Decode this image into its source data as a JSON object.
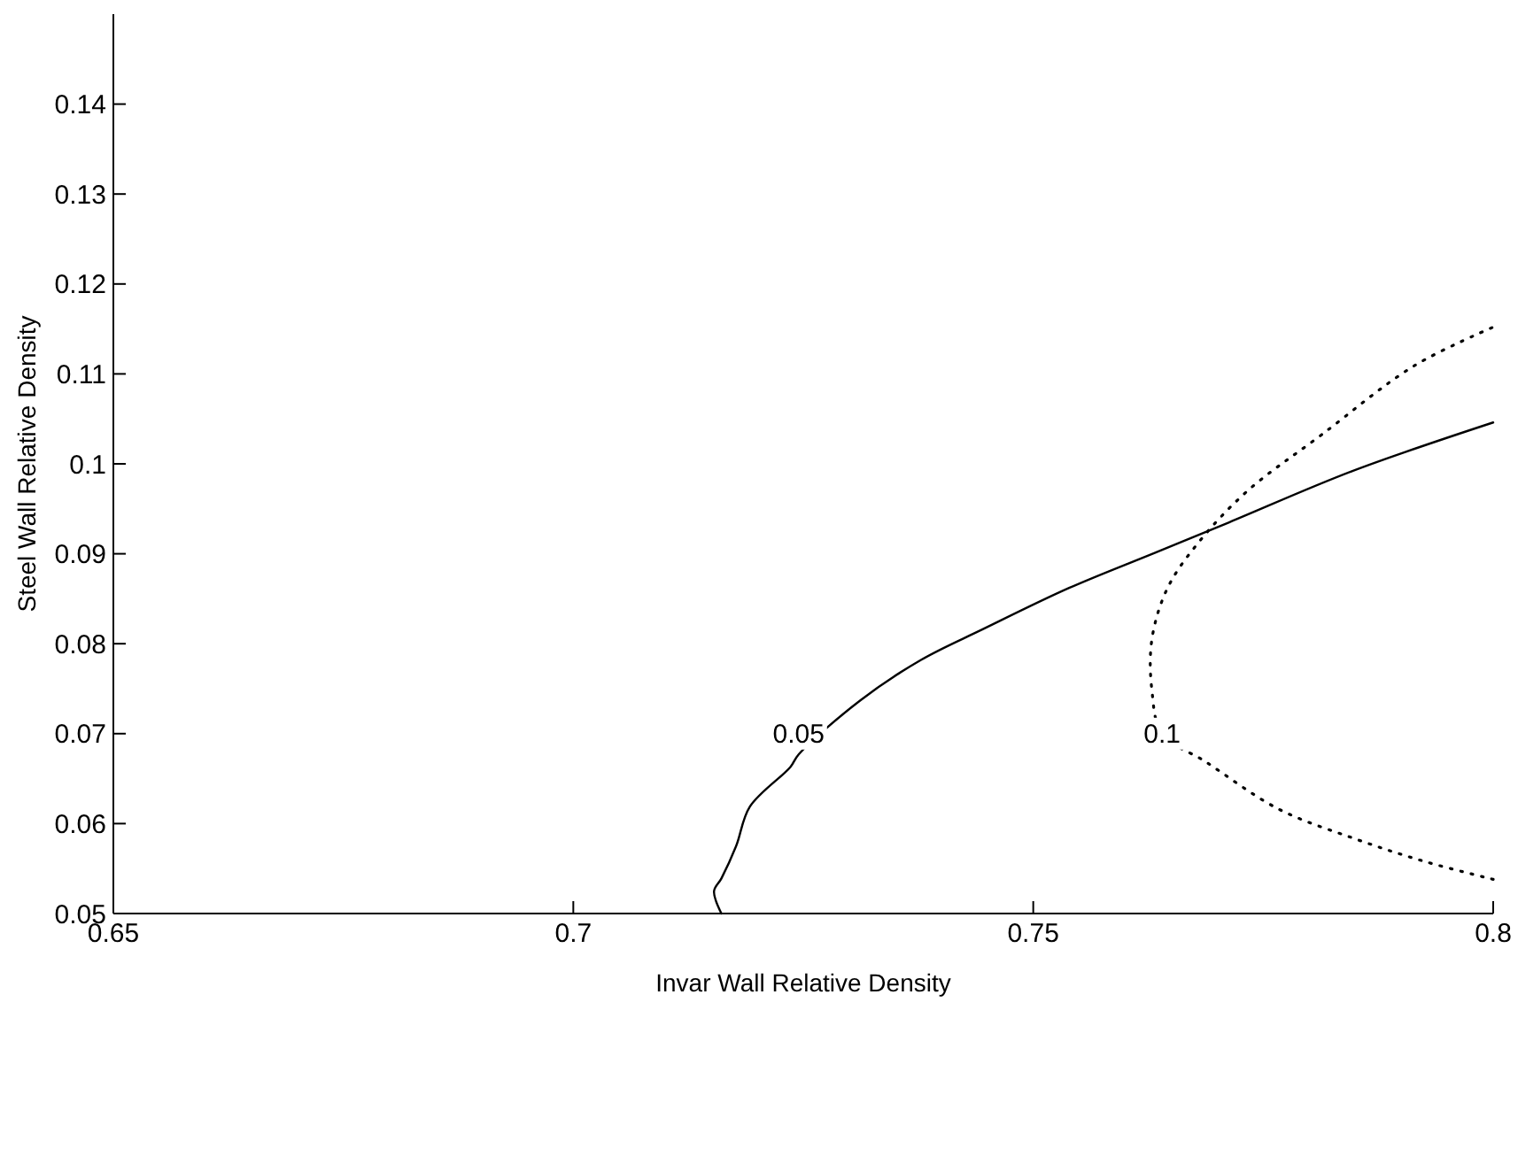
{
  "chart_data": {
    "type": "line",
    "xlabel": "Invar Wall Relative Density",
    "ylabel": "Steel Wall Relative Density",
    "xlim": [
      0.65,
      0.8
    ],
    "ylim": [
      0.05,
      0.15
    ],
    "xticks": [
      0.65,
      0.7,
      0.75,
      0.8
    ],
    "yticks": [
      0.05,
      0.06,
      0.07,
      0.08,
      0.09,
      0.1,
      0.11,
      0.12,
      0.13,
      0.14
    ],
    "grid": false,
    "series": [
      {
        "color": "#000000",
        "line_style": "solid",
        "x": [
          0.7161,
          0.7153,
          0.7161,
          0.7177,
          0.7192,
          0.7236,
          0.7245,
          0.7312,
          0.7378,
          0.7445,
          0.7539,
          0.7632,
          0.7713,
          0.7847,
          0.8
        ],
        "values": [
          0.05,
          0.0525,
          0.0539,
          0.0575,
          0.0619,
          0.0663,
          0.0677,
          0.0737,
          0.0782,
          0.0816,
          0.0862,
          0.0901,
          0.0935,
          0.0992,
          0.1046
        ]
      },
      {
        "color": "#000000",
        "line_style": "dotted",
        "x": [
          0.8,
          0.7925,
          0.785,
          0.7767,
          0.7687,
          0.764,
          0.7629,
          0.7629,
          0.7646,
          0.768,
          0.7733,
          0.7813,
          0.7914,
          0.8
        ],
        "values": [
          0.0538,
          0.0558,
          0.0583,
          0.0616,
          0.0669,
          0.07,
          0.0748,
          0.0805,
          0.0862,
          0.0913,
          0.097,
          0.1032,
          0.1109,
          0.1152
        ]
      }
    ],
    "annotations": [
      {
        "text": "0.05",
        "x": 0.7245,
        "y": 0.07
      },
      {
        "text": "0.1",
        "x": 0.764,
        "y": 0.07
      }
    ]
  }
}
